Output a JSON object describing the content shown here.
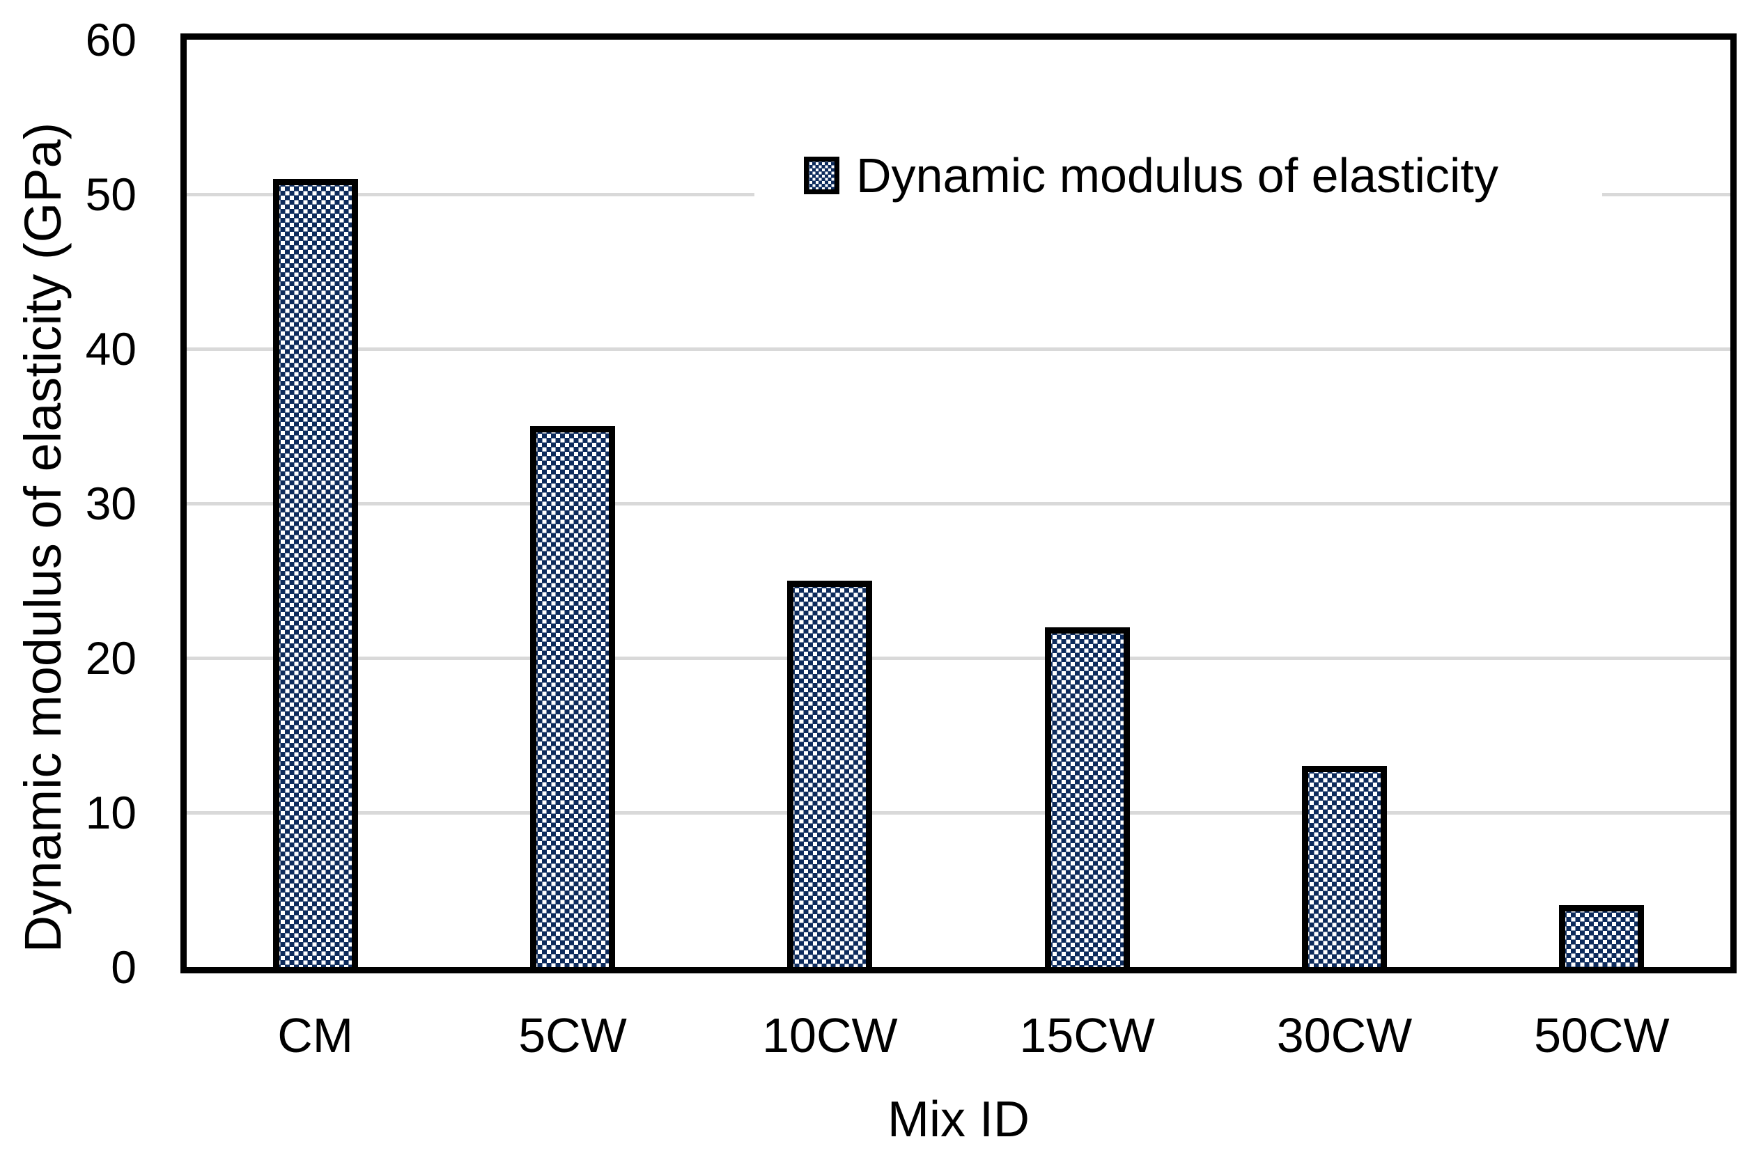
{
  "chart_data": {
    "type": "bar",
    "categories": [
      "CM",
      "5CW",
      "10CW",
      "15CW",
      "30CW",
      "50CW"
    ],
    "values": [
      51,
      35,
      25,
      22,
      13,
      4
    ],
    "series": [
      {
        "name": "Dynamic modulus of elasticity",
        "values": [
          51,
          35,
          25,
          22,
          13,
          4
        ]
      }
    ],
    "title": "",
    "xlabel": "Mix ID",
    "ylabel": "Dynamic modulus of elasticity (GPa)",
    "ylim": [
      0,
      60
    ],
    "yticks": [
      0,
      10,
      20,
      30,
      40,
      50,
      60
    ],
    "gridlines": [
      10,
      20,
      30,
      40,
      50
    ],
    "grid": "horizontal",
    "legend": {
      "position": "inside-top-right",
      "label": "Dynamic modulus of elasticity",
      "marker": "patterned-square"
    },
    "bar_style": "navy fill with white dotted-square pattern, thick black border",
    "colors": {
      "bar_fill": "#0d2b5c",
      "bar_pattern_dot": "#ffffff",
      "bar_border": "#000000",
      "gridline": "#d9d9d9",
      "axis": "#000000",
      "text": "#000000",
      "background": "#ffffff"
    }
  }
}
